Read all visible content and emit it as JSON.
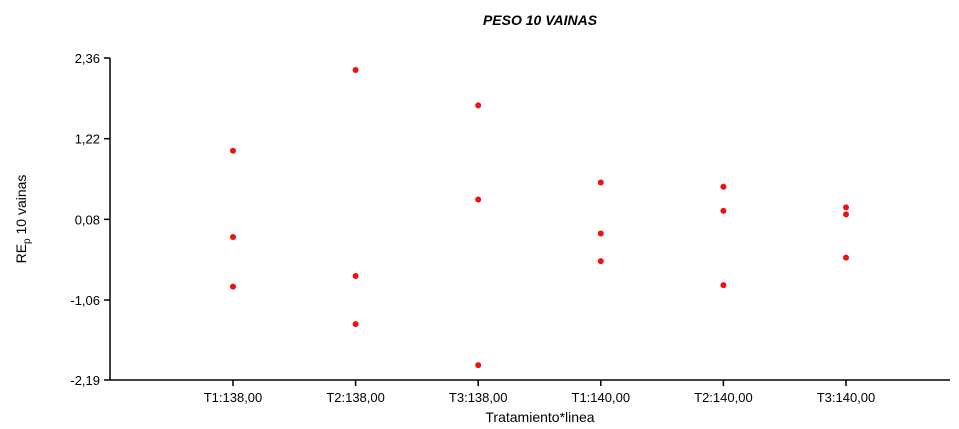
{
  "chart_data": {
    "type": "scatter",
    "title": "PESO 10 VAINAS",
    "xlabel": "Tratamiento*linea",
    "ylabel_main": "RE",
    "ylabel_sub": "p",
    "ylabel_rest": " 10 vainas",
    "categories": [
      "T1:138,00",
      "T2:138,00",
      "T3:138,00",
      "T1:140,00",
      "T2:140,00",
      "T3:140,00"
    ],
    "yticks": [
      "2,36",
      "1,22",
      "0,08",
      "-1,06",
      "-2,19"
    ],
    "ylim": [
      -2.19,
      2.36
    ],
    "grid": false,
    "marker_color": "#ee1111",
    "series": [
      {
        "points": [
          {
            "category": "T1:138,00",
            "y": 1.05
          },
          {
            "category": "T1:138,00",
            "y": -0.17
          },
          {
            "category": "T1:138,00",
            "y": -0.87
          },
          {
            "category": "T2:138,00",
            "y": 2.19
          },
          {
            "category": "T2:138,00",
            "y": -0.72
          },
          {
            "category": "T2:138,00",
            "y": -1.4
          },
          {
            "category": "T3:138,00",
            "y": 1.69
          },
          {
            "category": "T3:138,00",
            "y": 0.36
          },
          {
            "category": "T3:138,00",
            "y": -1.98
          },
          {
            "category": "T1:140,00",
            "y": 0.6
          },
          {
            "category": "T1:140,00",
            "y": -0.12
          },
          {
            "category": "T1:140,00",
            "y": -0.51
          },
          {
            "category": "T2:140,00",
            "y": 0.54
          },
          {
            "category": "T2:140,00",
            "y": 0.2
          },
          {
            "category": "T2:140,00",
            "y": -0.85
          },
          {
            "category": "T3:140,00",
            "y": 0.25
          },
          {
            "category": "T3:140,00",
            "y": 0.15
          },
          {
            "category": "T3:140,00",
            "y": -0.46
          }
        ]
      }
    ]
  }
}
